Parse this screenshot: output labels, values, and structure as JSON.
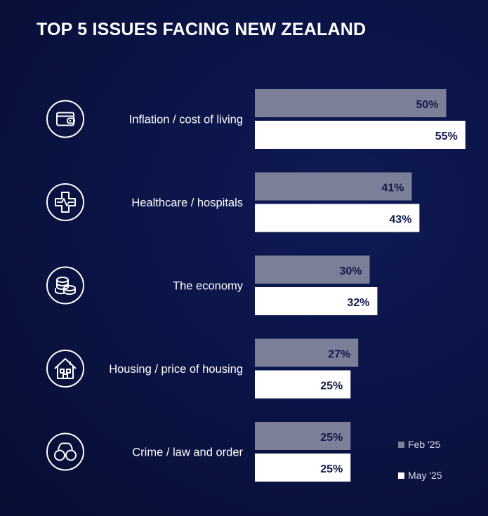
{
  "title": "TOP 5 ISSUES FACING NEW ZEALAND",
  "colors": {
    "background": "#0b1446",
    "feb_bar": "#7c7f98",
    "may_bar": "#ffffff",
    "value_text": "#141b4d",
    "label_text": "#ffffff"
  },
  "chart_data": {
    "type": "bar",
    "orientation": "horizontal",
    "title": "TOP 5 ISSUES FACING NEW ZEALAND",
    "categories": [
      "Inflation / cost of living",
      "Healthcare / hospitals",
      "The economy",
      "Housing / price of housing",
      "Crime / law and order"
    ],
    "icons": [
      "wallet-icon",
      "medical-cross-icon",
      "coins-icon",
      "house-icon",
      "handcuffs-icon"
    ],
    "series": [
      {
        "name": "Feb '25",
        "values": [
          50,
          41,
          30,
          27,
          25
        ],
        "labels": [
          "50%",
          "41%",
          "30%",
          "27%",
          "25%"
        ],
        "color": "#7c7f98"
      },
      {
        "name": "May '25",
        "values": [
          55,
          43,
          32,
          25,
          25
        ],
        "labels": [
          "55%",
          "43%",
          "32%",
          "25%",
          "25%"
        ],
        "color": "#ffffff"
      }
    ],
    "xlim": [
      0,
      100
    ],
    "unit": "%",
    "grid": false,
    "legend": "bottom-right"
  }
}
